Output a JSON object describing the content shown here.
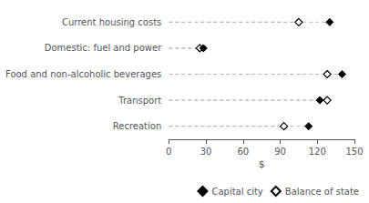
{
  "chart_data": {
    "type": "dot",
    "categories": [
      "Recreation",
      "Transport",
      "Food and non-alcoholic beverages",
      "Domestic: fuel and power",
      "Current housing costs"
    ],
    "series": [
      {
        "name": "Capital city",
        "color": "#000000",
        "marker": "filled_diamond",
        "values": [
          113,
          122,
          140,
          28,
          130
        ]
      },
      {
        "name": "Balance of state",
        "color": "#000000",
        "marker": "open_diamond",
        "values": [
          93,
          128,
          128,
          25,
          105
        ]
      }
    ],
    "xlabel": "$",
    "xlim": [
      0,
      150
    ],
    "xticks": [
      0,
      30,
      60,
      90,
      120,
      150
    ],
    "line_style": "dashed",
    "grid": false,
    "legend": "lower right"
  }
}
